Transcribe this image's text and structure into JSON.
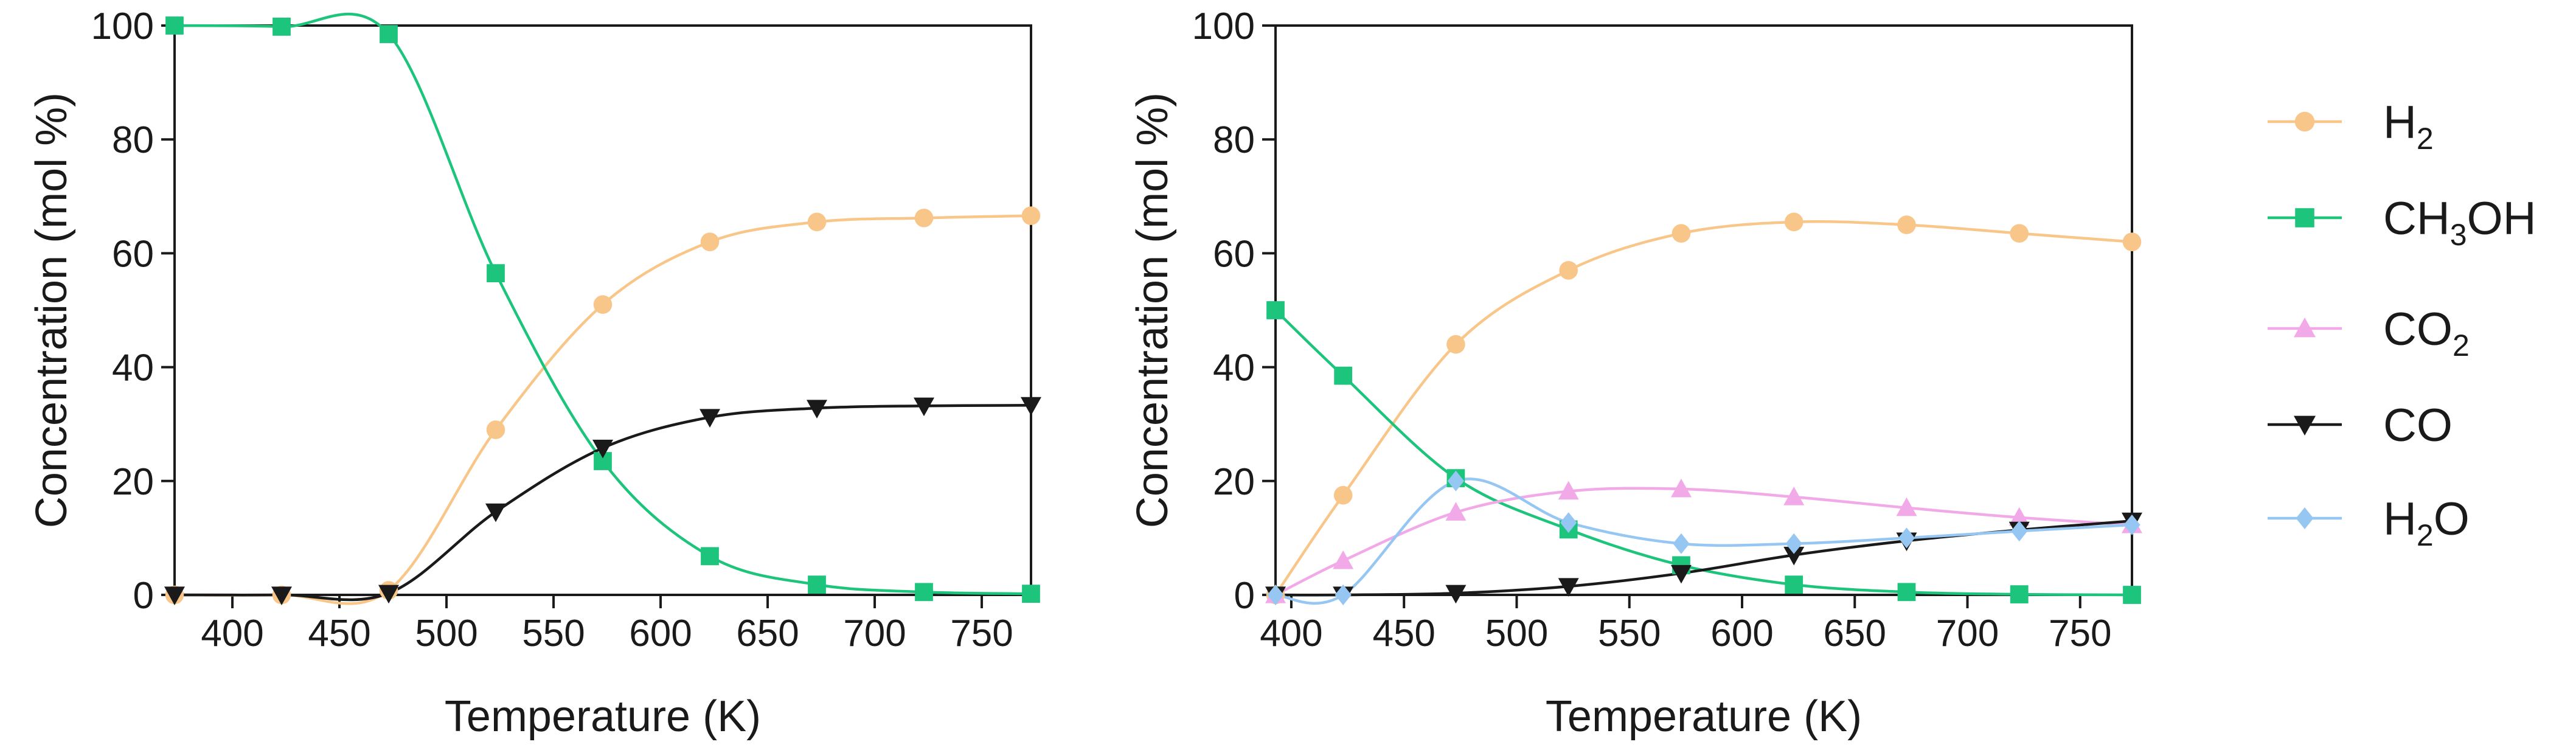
{
  "legend": [
    {
      "key": "H2",
      "base": "H",
      "sub": "2",
      "tail": "",
      "color": "#F9C68A",
      "marker": "circle"
    },
    {
      "key": "CH3OH",
      "base": "CH",
      "sub": "3",
      "tail": "OH",
      "color": "#1DC47B",
      "marker": "square"
    },
    {
      "key": "CO2",
      "base": "CO",
      "sub": "2",
      "tail": "",
      "color": "#F2A9E8",
      "marker": "triangle-up"
    },
    {
      "key": "CO",
      "base": "CO",
      "sub": "",
      "tail": "",
      "color": "#1a1a1a",
      "marker": "triangle-down"
    },
    {
      "key": "H2O",
      "base": "H",
      "sub": "2",
      "tail": "O",
      "color": "#96C6F2",
      "marker": "diamond"
    }
  ],
  "chart_data": [
    {
      "type": "line",
      "xlabel": "Temperature (K)",
      "ylabel": "Concentration (mol %)",
      "xlim": [
        373,
        773
      ],
      "ylim": [
        0,
        100
      ],
      "xticks": [
        400,
        450,
        500,
        550,
        600,
        650,
        700,
        750
      ],
      "yticks": [
        0,
        20,
        40,
        60,
        80,
        100
      ],
      "x": [
        373,
        423,
        473,
        523,
        573,
        623,
        673,
        723,
        773
      ],
      "series": [
        {
          "key": "H2",
          "name": "H2",
          "values": [
            0,
            0,
            0.8,
            29,
            51,
            62,
            65.5,
            66.2,
            66.6
          ]
        },
        {
          "key": "CH3OH",
          "name": "CH3OH",
          "values": [
            100,
            99.8,
            98.5,
            56.5,
            23.5,
            6.8,
            1.8,
            0.5,
            0.2
          ]
        },
        {
          "key": "CO",
          "name": "CO",
          "values": [
            0,
            0,
            0.3,
            14.6,
            25.8,
            31.2,
            32.8,
            33.2,
            33.3
          ]
        }
      ]
    },
    {
      "type": "line",
      "xlabel": "Temperature (K)",
      "ylabel": "Concentration (mol %)",
      "xlim": [
        393,
        773
      ],
      "ylim": [
        0,
        100
      ],
      "xticks": [
        400,
        450,
        500,
        550,
        600,
        650,
        700,
        750
      ],
      "yticks": [
        0,
        20,
        40,
        60,
        80,
        100
      ],
      "x": [
        393,
        423,
        473,
        523,
        573,
        623,
        673,
        723,
        773
      ],
      "series": [
        {
          "key": "H2",
          "name": "H2",
          "values": [
            0,
            17.5,
            44,
            57,
            63.5,
            65.5,
            65,
            63.5,
            62
          ]
        },
        {
          "key": "CH3OH",
          "name": "CH3OH",
          "values": [
            50,
            38.5,
            20.5,
            11.5,
            5.2,
            1.8,
            0.5,
            0.1,
            0
          ]
        },
        {
          "key": "CO2",
          "name": "CO2",
          "values": [
            0,
            6,
            14.5,
            18.2,
            18.6,
            17.2,
            15.3,
            13.6,
            12.3
          ]
        },
        {
          "key": "CO",
          "name": "CO",
          "values": [
            0,
            0,
            0.3,
            1.5,
            3.8,
            7,
            9.5,
            11.4,
            13
          ]
        },
        {
          "key": "H2O",
          "name": "H2O",
          "values": [
            0,
            0,
            20,
            12.7,
            9,
            9,
            10,
            11.2,
            12.3
          ]
        }
      ]
    }
  ]
}
